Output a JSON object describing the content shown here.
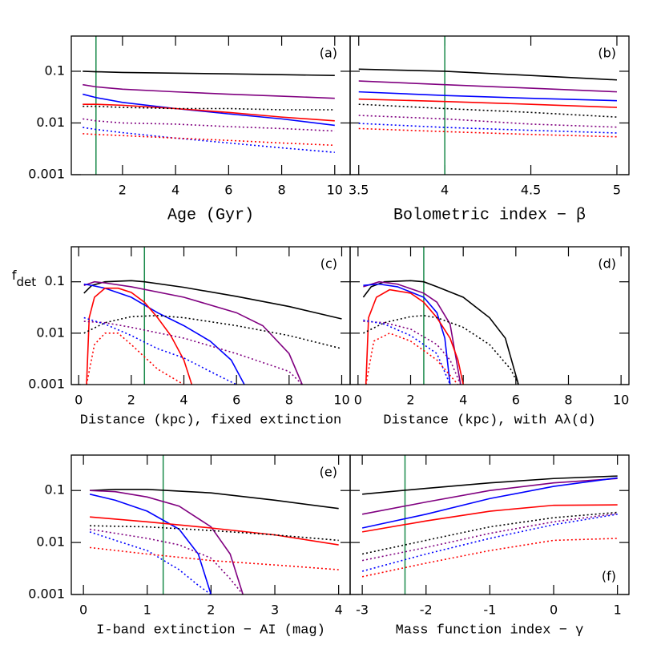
{
  "chart_data": [
    {
      "type": "line",
      "panel_label": "(a)",
      "label_position": "top",
      "xlabel": "Age (Gyr)",
      "xlabel_big": true,
      "xlim": [
        0.07,
        10.58
      ],
      "xticks": [
        2,
        4,
        6,
        8,
        10
      ],
      "ylim": [
        0.001,
        0.48
      ],
      "yticks": [
        0.001,
        0.01,
        0.1
      ],
      "log_y": true,
      "show_ytick_labels": true,
      "marker_x": 1,
      "marker_color": "#1a8a4a",
      "x": [
        0.5,
        1,
        2,
        4,
        6,
        8,
        10
      ],
      "series": [
        {
          "color": "#000000",
          "dash": false,
          "values": [
            0.1,
            0.098,
            0.095,
            0.092,
            0.089,
            0.086,
            0.083
          ]
        },
        {
          "color": "#800080",
          "dash": false,
          "values": [
            0.055,
            0.05,
            0.045,
            0.04,
            0.036,
            0.033,
            0.03
          ]
        },
        {
          "color": "#0000ff",
          "dash": false,
          "values": [
            0.036,
            0.031,
            0.025,
            0.019,
            0.015,
            0.012,
            0.009
          ]
        },
        {
          "color": "#ff0000",
          "dash": false,
          "values": [
            0.023,
            0.023,
            0.022,
            0.019,
            0.016,
            0.013,
            0.011
          ]
        },
        {
          "color": "#000000",
          "dash": true,
          "values": [
            0.021,
            0.021,
            0.02,
            0.019,
            0.019,
            0.018,
            0.018
          ]
        },
        {
          "color": "#800080",
          "dash": true,
          "values": [
            0.012,
            0.011,
            0.01,
            0.0095,
            0.0085,
            0.0078,
            0.007
          ]
        },
        {
          "color": "#0000ff",
          "dash": true,
          "values": [
            0.0082,
            0.0075,
            0.0065,
            0.0051,
            0.0041,
            0.0033,
            0.0027
          ]
        },
        {
          "color": "#ff0000",
          "dash": true,
          "values": [
            0.0062,
            0.006,
            0.0057,
            0.0051,
            0.0046,
            0.0041,
            0.0037
          ]
        }
      ]
    },
    {
      "type": "line",
      "panel_label": "(b)",
      "label_position": "top",
      "xlabel": "Bolometric index − β",
      "xlabel_big": true,
      "xlim": [
        3.45,
        5.07
      ],
      "xticks": [
        3.5,
        4,
        4.5,
        5
      ],
      "ylim": [
        0.001,
        0.48
      ],
      "yticks": [
        0.001,
        0.01,
        0.1
      ],
      "log_y": true,
      "show_ytick_labels": false,
      "marker_x": 4,
      "marker_color": "#1a8a4a",
      "x": [
        3.5,
        4,
        4.5,
        5
      ],
      "series": [
        {
          "color": "#000000",
          "dash": false,
          "values": [
            0.11,
            0.1,
            0.083,
            0.068
          ]
        },
        {
          "color": "#800080",
          "dash": false,
          "values": [
            0.065,
            0.055,
            0.047,
            0.04
          ]
        },
        {
          "color": "#0000ff",
          "dash": false,
          "values": [
            0.04,
            0.034,
            0.03,
            0.027
          ]
        },
        {
          "color": "#ff0000",
          "dash": false,
          "values": [
            0.029,
            0.026,
            0.023,
            0.02
          ]
        },
        {
          "color": "#000000",
          "dash": true,
          "values": [
            0.023,
            0.019,
            0.016,
            0.013
          ]
        },
        {
          "color": "#800080",
          "dash": true,
          "values": [
            0.014,
            0.012,
            0.0095,
            0.0083
          ]
        },
        {
          "color": "#0000ff",
          "dash": true,
          "values": [
            0.0098,
            0.0082,
            0.0072,
            0.0064
          ]
        },
        {
          "color": "#ff0000",
          "dash": true,
          "values": [
            0.0078,
            0.0068,
            0.006,
            0.0054
          ]
        }
      ]
    },
    {
      "type": "line",
      "panel_label": "(c)",
      "label_position": "top",
      "xlabel": "Distance (kpc), fixed extinction",
      "xlabel_big": false,
      "ylabel": "f",
      "ylabel_sub": "det",
      "xlim": [
        -0.28,
        10.32
      ],
      "xticks": [
        0,
        2,
        4,
        6,
        8,
        10
      ],
      "ylim": [
        0.001,
        0.48
      ],
      "yticks": [
        0.001,
        0.01,
        0.1
      ],
      "log_y": true,
      "show_ytick_labels": true,
      "marker_x": 2.5,
      "marker_color": "#1a8a4a",
      "series": [
        {
          "color": "#000000",
          "dash": false,
          "x": [
            0.2,
            0.5,
            1,
            2,
            2.5,
            4,
            6,
            8,
            10
          ],
          "values": [
            0.06,
            0.085,
            0.1,
            0.105,
            0.1,
            0.078,
            0.052,
            0.033,
            0.019
          ]
        },
        {
          "color": "#800080",
          "dash": false,
          "x": [
            0.2,
            0.6,
            1,
            2,
            4,
            6,
            7,
            8,
            8.5
          ],
          "values": [
            0.085,
            0.1,
            0.095,
            0.08,
            0.05,
            0.025,
            0.014,
            0.004,
            0.001
          ]
        },
        {
          "color": "#0000ff",
          "dash": false,
          "x": [
            0.2,
            0.5,
            1,
            2,
            3,
            4,
            5,
            5.8,
            6.3
          ],
          "values": [
            0.09,
            0.085,
            0.075,
            0.05,
            0.025,
            0.014,
            0.007,
            0.003,
            0.001
          ]
        },
        {
          "color": "#ff0000",
          "dash": false,
          "x": [
            0.3,
            0.4,
            0.6,
            1,
            1.5,
            2,
            2.5,
            3,
            3.5,
            4,
            4.3
          ],
          "values": [
            0.001,
            0.02,
            0.05,
            0.075,
            0.075,
            0.062,
            0.04,
            0.02,
            0.009,
            0.003,
            0.001
          ]
        },
        {
          "color": "#000000",
          "dash": true,
          "x": [
            0.2,
            1,
            2,
            3,
            4,
            6,
            8,
            10
          ],
          "values": [
            0.01,
            0.016,
            0.021,
            0.022,
            0.02,
            0.014,
            0.009,
            0.005
          ]
        },
        {
          "color": "#800080",
          "dash": true,
          "x": [
            0.2,
            1,
            2,
            4,
            6,
            8,
            8.5
          ],
          "values": [
            0.017,
            0.016,
            0.013,
            0.008,
            0.004,
            0.0018,
            0.001
          ]
        },
        {
          "color": "#0000ff",
          "dash": true,
          "x": [
            0.2,
            1,
            2,
            3,
            4,
            5,
            6
          ],
          "values": [
            0.02,
            0.015,
            0.009,
            0.005,
            0.0033,
            0.0018,
            0.001
          ]
        },
        {
          "color": "#ff0000",
          "dash": true,
          "x": [
            0.3,
            0.6,
            1,
            1.5,
            2,
            3,
            4
          ],
          "values": [
            0.001,
            0.006,
            0.01,
            0.01,
            0.006,
            0.002,
            0.001
          ]
        }
      ]
    },
    {
      "type": "line",
      "panel_label": "(d)",
      "label_position": "top",
      "xlabel": "Distance (kpc), with Aλ(d)",
      "xlabel_big": false,
      "xlim": [
        -0.3,
        10.3
      ],
      "xticks": [
        0,
        2,
        4,
        6,
        8,
        10
      ],
      "ylim": [
        0.001,
        0.48
      ],
      "yticks": [
        0.001,
        0.01,
        0.1
      ],
      "log_y": true,
      "show_ytick_labels": false,
      "marker_x": 2.5,
      "marker_color": "#1a8a4a",
      "series": [
        {
          "color": "#000000",
          "dash": false,
          "x": [
            0.2,
            0.5,
            1,
            2,
            2.5,
            3,
            4,
            5,
            5.6,
            6.1
          ],
          "values": [
            0.05,
            0.08,
            0.1,
            0.105,
            0.1,
            0.08,
            0.05,
            0.02,
            0.008,
            0.001
          ]
        },
        {
          "color": "#800080",
          "dash": false,
          "x": [
            0.2,
            0.8,
            1.5,
            2.5,
            3,
            3.5,
            3.9
          ],
          "values": [
            0.08,
            0.1,
            0.09,
            0.06,
            0.04,
            0.015,
            0.001
          ]
        },
        {
          "color": "#0000ff",
          "dash": false,
          "x": [
            0.2,
            0.8,
            1.5,
            2.5,
            3,
            3.3,
            3.5
          ],
          "values": [
            0.085,
            0.09,
            0.08,
            0.05,
            0.025,
            0.008,
            0.001
          ]
        },
        {
          "color": "#ff0000",
          "dash": false,
          "x": [
            0.3,
            0.4,
            0.7,
            1.2,
            2,
            2.5,
            3,
            3.5,
            3.8,
            4
          ],
          "values": [
            0.001,
            0.02,
            0.05,
            0.07,
            0.06,
            0.04,
            0.02,
            0.008,
            0.003,
            0.001
          ]
        },
        {
          "color": "#000000",
          "dash": true,
          "x": [
            0.2,
            1,
            2,
            2.5,
            3,
            4,
            5,
            5.8,
            6.1
          ],
          "values": [
            0.01,
            0.016,
            0.021,
            0.022,
            0.02,
            0.013,
            0.006,
            0.002,
            0.001
          ]
        },
        {
          "color": "#800080",
          "dash": true,
          "x": [
            0.2,
            1,
            2,
            3,
            3.5,
            3.9
          ],
          "values": [
            0.017,
            0.016,
            0.012,
            0.006,
            0.003,
            0.001
          ]
        },
        {
          "color": "#0000ff",
          "dash": true,
          "x": [
            0.2,
            1,
            2,
            3,
            3.5
          ],
          "values": [
            0.018,
            0.015,
            0.009,
            0.004,
            0.001
          ]
        },
        {
          "color": "#ff0000",
          "dash": true,
          "x": [
            0.3,
            0.6,
            1.2,
            2,
            3,
            3.8
          ],
          "values": [
            0.001,
            0.007,
            0.01,
            0.007,
            0.003,
            0.001
          ]
        }
      ]
    },
    {
      "type": "line",
      "panel_label": "(e)",
      "label_position": "top",
      "xlabel": "I-band extinction − AI (mag)",
      "xlabel_big": false,
      "xlim": [
        -0.19,
        4.18
      ],
      "xticks": [
        0,
        1,
        2,
        3,
        4
      ],
      "ylim": [
        0.001,
        0.48
      ],
      "yticks": [
        0.001,
        0.01,
        0.1
      ],
      "log_y": true,
      "show_ytick_labels": true,
      "marker_x": 1.25,
      "marker_color": "#1a8a4a",
      "series": [
        {
          "color": "#000000",
          "dash": false,
          "x": [
            0.1,
            0.5,
            1,
            2,
            3,
            4
          ],
          "values": [
            0.1,
            0.105,
            0.105,
            0.09,
            0.065,
            0.045
          ]
        },
        {
          "color": "#800080",
          "dash": false,
          "x": [
            0.1,
            0.5,
            1,
            1.5,
            2,
            2.3,
            2.5
          ],
          "values": [
            0.1,
            0.095,
            0.075,
            0.05,
            0.02,
            0.006,
            0.001
          ]
        },
        {
          "color": "#0000ff",
          "dash": false,
          "x": [
            0.1,
            0.5,
            1,
            1.5,
            1.8,
            2
          ],
          "values": [
            0.085,
            0.065,
            0.04,
            0.018,
            0.006,
            0.001
          ]
        },
        {
          "color": "#ff0000",
          "dash": false,
          "x": [
            0.1,
            1,
            2,
            3,
            4
          ],
          "values": [
            0.031,
            0.025,
            0.019,
            0.014,
            0.009
          ]
        },
        {
          "color": "#000000",
          "dash": true,
          "x": [
            0.1,
            1,
            2,
            3,
            4
          ],
          "values": [
            0.021,
            0.02,
            0.017,
            0.014,
            0.011
          ]
        },
        {
          "color": "#800080",
          "dash": true,
          "x": [
            0.1,
            1,
            1.5,
            2,
            2.3,
            2.5
          ],
          "values": [
            0.018,
            0.012,
            0.009,
            0.005,
            0.002,
            0.001
          ]
        },
        {
          "color": "#0000ff",
          "dash": true,
          "x": [
            0.1,
            0.5,
            1,
            1.5,
            1.8,
            2
          ],
          "values": [
            0.016,
            0.011,
            0.007,
            0.003,
            0.0015,
            0.001
          ]
        },
        {
          "color": "#ff0000",
          "dash": true,
          "x": [
            0.1,
            1,
            2,
            3,
            4
          ],
          "values": [
            0.008,
            0.006,
            0.0045,
            0.0037,
            0.003
          ]
        }
      ]
    },
    {
      "type": "line",
      "panel_label": "(f)",
      "label_position": "bottom",
      "xlabel": "Mass function index − γ",
      "xlabel_big": false,
      "xlim": [
        -3.19,
        1.18
      ],
      "xticks": [
        -3,
        -2,
        -1,
        0,
        1
      ],
      "ylim": [
        0.001,
        0.48
      ],
      "yticks": [
        0.001,
        0.01,
        0.1
      ],
      "log_y": true,
      "show_ytick_labels": false,
      "marker_x": -2.33,
      "marker_color": "#1a8a4a",
      "x": [
        -3,
        -2,
        -1,
        0,
        1
      ],
      "series": [
        {
          "color": "#000000",
          "dash": false,
          "values": [
            0.085,
            0.11,
            0.14,
            0.17,
            0.19
          ]
        },
        {
          "color": "#800080",
          "dash": false,
          "values": [
            0.035,
            0.06,
            0.1,
            0.14,
            0.17
          ]
        },
        {
          "color": "#0000ff",
          "dash": false,
          "values": [
            0.019,
            0.035,
            0.07,
            0.12,
            0.175
          ]
        },
        {
          "color": "#ff0000",
          "dash": false,
          "values": [
            0.016,
            0.026,
            0.04,
            0.052,
            0.053
          ]
        },
        {
          "color": "#000000",
          "dash": true,
          "values": [
            0.006,
            0.011,
            0.02,
            0.03,
            0.038
          ]
        },
        {
          "color": "#800080",
          "dash": true,
          "values": [
            0.0045,
            0.008,
            0.015,
            0.025,
            0.036
          ]
        },
        {
          "color": "#0000ff",
          "dash": true,
          "values": [
            0.0028,
            0.006,
            0.012,
            0.022,
            0.035
          ]
        },
        {
          "color": "#ff0000",
          "dash": true,
          "values": [
            0.0022,
            0.004,
            0.007,
            0.011,
            0.012
          ]
        }
      ]
    }
  ]
}
